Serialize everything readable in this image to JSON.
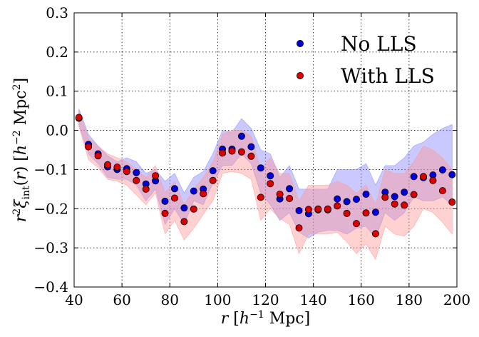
{
  "chart_data": {
    "type": "scatter",
    "title": "",
    "xlabel": "r [h⁻¹ Mpc]",
    "ylabel": "r²ξint(r) [h⁻² Mpc²]",
    "xlim": [
      40,
      200
    ],
    "ylim": [
      -0.4,
      0.3
    ],
    "xticks": [
      40,
      60,
      80,
      100,
      120,
      140,
      160,
      180,
      200
    ],
    "xtick_labels": [
      "40",
      "60",
      "80",
      "100",
      "120",
      "140",
      "160",
      "180",
      "200"
    ],
    "yticks": [
      -0.4,
      -0.3,
      -0.2,
      -0.1,
      0.0,
      0.1,
      0.2,
      0.3
    ],
    "ytick_labels": [
      "−0.4",
      "−0.3",
      "−0.2",
      "−0.1",
      "0.0",
      "0.1",
      "0.2",
      "0.3"
    ],
    "grid": true,
    "legend_position": "top-right",
    "x": [
      42,
      46,
      50,
      54,
      58,
      62,
      66,
      70,
      74,
      78,
      82,
      86,
      90,
      94,
      98,
      102,
      106,
      110,
      114,
      118,
      122,
      126,
      130,
      134,
      138,
      142,
      146,
      150,
      154,
      158,
      162,
      166,
      170,
      174,
      178,
      182,
      186,
      190,
      194,
      198
    ],
    "series": [
      {
        "name": "No LLS",
        "color": "#0000dd",
        "band_color": "#8888ff",
        "values": [
          0.031,
          -0.036,
          -0.06,
          -0.093,
          -0.1,
          -0.098,
          -0.108,
          -0.137,
          -0.129,
          -0.181,
          -0.149,
          -0.198,
          -0.155,
          -0.15,
          -0.103,
          -0.048,
          -0.048,
          -0.015,
          -0.042,
          -0.096,
          -0.116,
          -0.175,
          -0.149,
          -0.205,
          -0.213,
          -0.203,
          -0.203,
          -0.175,
          -0.182,
          -0.176,
          -0.163,
          -0.209,
          -0.158,
          -0.169,
          -0.158,
          -0.118,
          -0.121,
          -0.114,
          -0.101,
          -0.113
        ],
        "band_lower": [
          0.015,
          -0.06,
          -0.085,
          -0.12,
          -0.125,
          -0.125,
          -0.14,
          -0.18,
          -0.15,
          -0.24,
          -0.2,
          -0.24,
          -0.18,
          -0.19,
          -0.135,
          -0.09,
          -0.09,
          -0.06,
          -0.085,
          -0.16,
          -0.19,
          -0.23,
          -0.21,
          -0.26,
          -0.275,
          -0.26,
          -0.255,
          -0.255,
          -0.265,
          -0.25,
          -0.245,
          -0.275,
          -0.21,
          -0.23,
          -0.21,
          -0.17,
          -0.18,
          -0.18,
          -0.17,
          -0.19
        ],
        "band_upper": [
          0.055,
          -0.01,
          -0.04,
          -0.065,
          -0.08,
          -0.07,
          -0.08,
          -0.11,
          -0.1,
          -0.13,
          -0.11,
          -0.16,
          -0.12,
          -0.105,
          -0.06,
          0.0,
          -0.005,
          0.03,
          0.005,
          -0.05,
          -0.06,
          -0.12,
          -0.09,
          -0.15,
          -0.15,
          -0.15,
          -0.15,
          -0.1,
          -0.1,
          -0.1,
          -0.085,
          -0.14,
          -0.09,
          -0.09,
          -0.07,
          -0.04,
          -0.03,
          -0.01,
          0.005,
          0.015
        ]
      },
      {
        "name": "With LLS",
        "color": "#dd0000",
        "band_color": "#ff9999",
        "values": [
          0.033,
          -0.042,
          -0.065,
          -0.088,
          -0.094,
          -0.105,
          -0.128,
          -0.15,
          -0.116,
          -0.212,
          -0.173,
          -0.233,
          -0.201,
          -0.162,
          -0.128,
          -0.058,
          -0.053,
          -0.055,
          -0.066,
          -0.171,
          -0.136,
          -0.163,
          -0.174,
          -0.249,
          -0.202,
          -0.201,
          -0.201,
          -0.193,
          -0.212,
          -0.238,
          -0.211,
          -0.264,
          -0.171,
          -0.188,
          -0.191,
          -0.164,
          -0.118,
          -0.128,
          -0.154,
          -0.183
        ],
        "band_lower": [
          0.01,
          -0.075,
          -0.095,
          -0.125,
          -0.13,
          -0.14,
          -0.165,
          -0.19,
          -0.16,
          -0.265,
          -0.23,
          -0.28,
          -0.25,
          -0.215,
          -0.18,
          -0.11,
          -0.105,
          -0.11,
          -0.125,
          -0.23,
          -0.2,
          -0.225,
          -0.24,
          -0.315,
          -0.265,
          -0.265,
          -0.265,
          -0.26,
          -0.285,
          -0.315,
          -0.29,
          -0.33,
          -0.245,
          -0.265,
          -0.27,
          -0.245,
          -0.2,
          -0.21,
          -0.235,
          -0.265
        ],
        "band_upper": [
          0.05,
          -0.02,
          -0.04,
          -0.06,
          -0.07,
          -0.08,
          -0.1,
          -0.12,
          -0.09,
          -0.16,
          -0.13,
          -0.19,
          -0.15,
          -0.12,
          -0.08,
          -0.01,
          0.0,
          0.0,
          -0.015,
          -0.1,
          -0.07,
          -0.11,
          -0.11,
          -0.18,
          -0.14,
          -0.14,
          -0.14,
          -0.13,
          -0.14,
          -0.16,
          -0.14,
          -0.19,
          -0.1,
          -0.11,
          -0.11,
          -0.08,
          -0.04,
          -0.05,
          -0.07,
          -0.1
        ]
      }
    ]
  }
}
